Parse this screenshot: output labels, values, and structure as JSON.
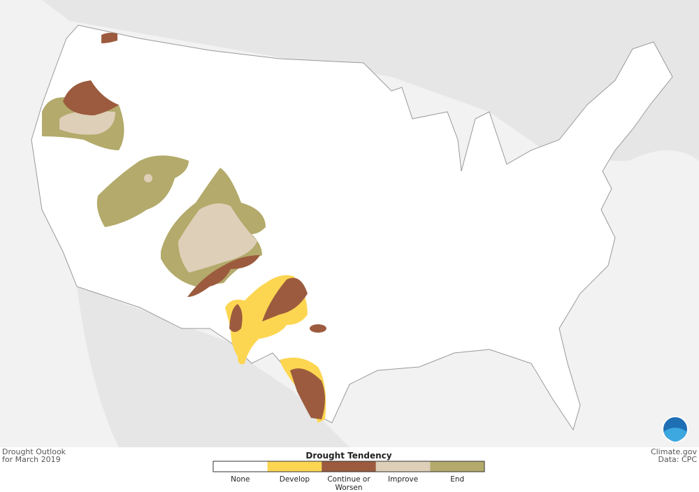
{
  "header": {
    "title": "Drought Outlook",
    "subtitle": "for March 2019"
  },
  "legend": {
    "title": "Drought Tendency",
    "items": [
      {
        "label": "None",
        "color": "#ffffff"
      },
      {
        "label": "Develop",
        "color": "#fdd651"
      },
      {
        "label": "Continue or Worsen",
        "color": "#9c5b3e"
      },
      {
        "label": "Improve",
        "color": "#ddcfb8"
      },
      {
        "label": "End",
        "color": "#b3aa6b"
      }
    ]
  },
  "credits": {
    "source": "Climate.gov",
    "data": "Data: CPC"
  }
}
